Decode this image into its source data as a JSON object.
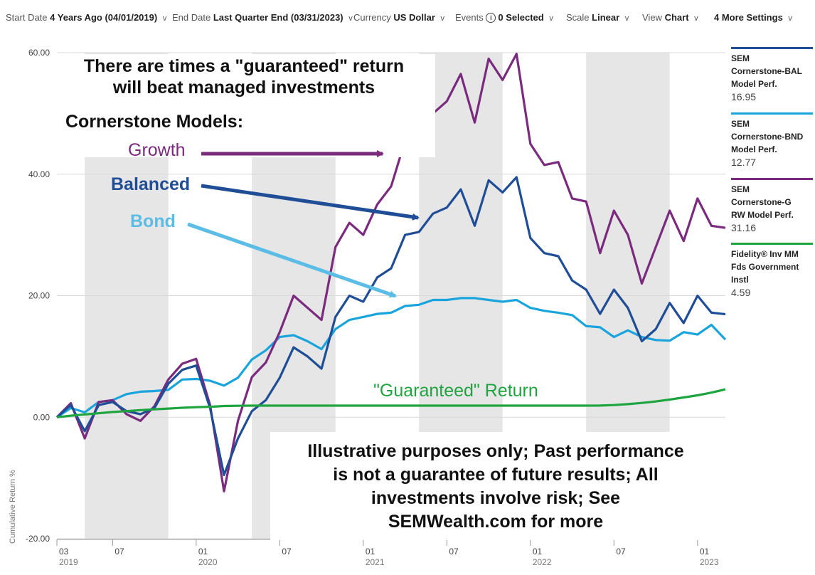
{
  "controls": {
    "start_date": {
      "label": "Start Date",
      "value": "4 Years Ago (04/01/2019)"
    },
    "end_date": {
      "label": "End Date",
      "value": "Last Quarter End (03/31/2023)"
    },
    "currency": {
      "label": "Currency",
      "value": "US Dollar"
    },
    "events": {
      "label": "Events",
      "value": "0 Selected"
    },
    "scale": {
      "label": "Scale",
      "value": "Linear"
    },
    "view": {
      "label": "View",
      "value": "Chart"
    },
    "more_settings": {
      "value": "4 More Settings"
    },
    "chevron": "v",
    "info_glyph": "i"
  },
  "legend": [
    {
      "name": "SEM\nCornerstone-BAL\nModel Perf.",
      "value": "16.95",
      "color": "#1f4e96"
    },
    {
      "name": "SEM\nCornerstone-BND\nModel Perf.",
      "value": "12.77",
      "color": "#1aa4dc"
    },
    {
      "name": "SEM\nCornerstone-G\nRW Model Perf.",
      "value": "31.16",
      "color": "#7b2b7e"
    },
    {
      "name": "Fidelity® Inv MM\nFds Government\nInstl",
      "value": "4.59",
      "color": "#1fa53f"
    }
  ],
  "annotations": {
    "headline_1": "There are times a \"guaranteed\" return",
    "headline_2": "will beat managed investments",
    "models_heading": "Cornerstone Models:",
    "growth": "Growth",
    "balanced": "Balanced",
    "bond": "Bond",
    "guaranteed": "\"Guaranteed\" Return",
    "disclaimer_1": "Illustrative purposes only; Past performance",
    "disclaimer_2": "is not a guarantee of future results; All",
    "disclaimer_3": "investments involve risk; See",
    "disclaimer_4": "SEMWealth.com for more"
  },
  "colors": {
    "growth_text": "#7b2b7e",
    "balanced_text": "#1f4e96",
    "bond_text": "#5bbde6",
    "guaranteed_text": "#1fa53f",
    "shade": "#e6e6e6"
  },
  "chart_data": {
    "type": "line",
    "ylabel": "Cumulative Return %",
    "ylim": [
      -20,
      60
    ],
    "yticks": [
      -20,
      0,
      20,
      40,
      60
    ],
    "ytick_labels": [
      "-20.00",
      "0.00",
      "20.00",
      "40.00",
      "60.00"
    ],
    "grid": "horizontal",
    "x_tick_labels": [
      {
        "month": "03",
        "year": "2019"
      },
      {
        "month": "07",
        "year": ""
      },
      {
        "month": "01",
        "year": "2020"
      },
      {
        "month": "07",
        "year": ""
      },
      {
        "month": "01",
        "year": "2021"
      },
      {
        "month": "07",
        "year": ""
      },
      {
        "month": "01",
        "year": "2022"
      },
      {
        "month": "07",
        "year": ""
      },
      {
        "month": "01",
        "year": "2023"
      }
    ],
    "x_dates": [
      "2019-03",
      "2019-04",
      "2019-05",
      "2019-06",
      "2019-07",
      "2019-08",
      "2019-09",
      "2019-10",
      "2019-11",
      "2019-12",
      "2020-01",
      "2020-02",
      "2020-03",
      "2020-04",
      "2020-05",
      "2020-06",
      "2020-07",
      "2020-08",
      "2020-09",
      "2020-10",
      "2020-11",
      "2020-12",
      "2021-01",
      "2021-02",
      "2021-03",
      "2021-04",
      "2021-05",
      "2021-06",
      "2021-07",
      "2021-08",
      "2021-09",
      "2021-10",
      "2021-11",
      "2021-12",
      "2022-01",
      "2022-02",
      "2022-03",
      "2022-04",
      "2022-05",
      "2022-06",
      "2022-07",
      "2022-08",
      "2022-09",
      "2022-10",
      "2022-11",
      "2022-12",
      "2023-01",
      "2023-02",
      "2023-03"
    ],
    "shaded_periods": [
      [
        "2019-05",
        "2019-11"
      ],
      [
        "2020-05",
        "2020-11"
      ],
      [
        "2021-05",
        "2021-11"
      ],
      [
        "2022-05",
        "2022-11"
      ]
    ],
    "series": [
      {
        "name": "SEM Cornerstone-GRW Model Perf.",
        "color": "#7b2b7e",
        "values": [
          0.0,
          2.3,
          -3.5,
          2.5,
          2.8,
          0.5,
          -0.6,
          1.8,
          6.2,
          8.8,
          9.6,
          2.0,
          -12.2,
          -0.6,
          6.6,
          9.0,
          14.0,
          20.0,
          18.0,
          16.0,
          28.0,
          32.0,
          30.0,
          35.0,
          38.0,
          45.5,
          46.0,
          50.0,
          52.0,
          56.5,
          48.5,
          59.0,
          55.5,
          59.8,
          45.0,
          41.5,
          42.0,
          36.0,
          35.5,
          27.0,
          34.0,
          30.0,
          22.0,
          28.0,
          34.0,
          29.0,
          36.0,
          31.5,
          31.16
        ]
      },
      {
        "name": "SEM Cornerstone-BAL Model Perf.",
        "color": "#1f4e96",
        "values": [
          0.0,
          2.0,
          -2.3,
          2.0,
          2.5,
          1.0,
          0.5,
          1.5,
          5.5,
          7.8,
          8.5,
          1.5,
          -9.5,
          -3.5,
          1.0,
          2.8,
          6.5,
          11.5,
          10.0,
          8.0,
          16.5,
          20.0,
          19.0,
          23.0,
          24.5,
          30.0,
          30.5,
          33.5,
          34.5,
          37.5,
          31.5,
          39.0,
          37.0,
          39.5,
          29.5,
          27.0,
          26.5,
          22.5,
          21.0,
          17.0,
          21.0,
          18.0,
          12.5,
          14.5,
          18.8,
          15.5,
          20.0,
          17.2,
          16.95
        ]
      },
      {
        "name": "SEM Cornerstone-BND Model Perf.",
        "color": "#1aa4dc",
        "values": [
          0.0,
          1.5,
          0.8,
          2.5,
          2.8,
          3.8,
          4.2,
          4.3,
          4.5,
          6.2,
          6.3,
          6.0,
          5.2,
          6.5,
          9.5,
          11.0,
          13.2,
          13.5,
          12.5,
          11.2,
          14.5,
          16.0,
          16.5,
          17.0,
          17.2,
          18.3,
          18.5,
          19.3,
          19.3,
          19.6,
          19.6,
          19.3,
          19.0,
          19.3,
          18.0,
          17.5,
          17.2,
          16.8,
          15.0,
          14.8,
          13.2,
          14.3,
          13.2,
          12.7,
          12.6,
          14.0,
          13.6,
          15.2,
          12.77
        ]
      },
      {
        "name": "Fidelity® Inv MM Fds Government Instl",
        "color": "#1fa53f",
        "values": [
          0.0,
          0.25,
          0.45,
          0.65,
          0.85,
          1.0,
          1.15,
          1.3,
          1.42,
          1.55,
          1.65,
          1.72,
          1.85,
          1.88,
          1.9,
          1.9,
          1.9,
          1.9,
          1.9,
          1.9,
          1.9,
          1.9,
          1.9,
          1.9,
          1.9,
          1.9,
          1.9,
          1.9,
          1.9,
          1.9,
          1.9,
          1.9,
          1.9,
          1.9,
          1.9,
          1.9,
          1.9,
          1.9,
          1.9,
          1.92,
          2.0,
          2.15,
          2.35,
          2.6,
          2.9,
          3.25,
          3.6,
          4.05,
          4.59
        ]
      }
    ]
  }
}
